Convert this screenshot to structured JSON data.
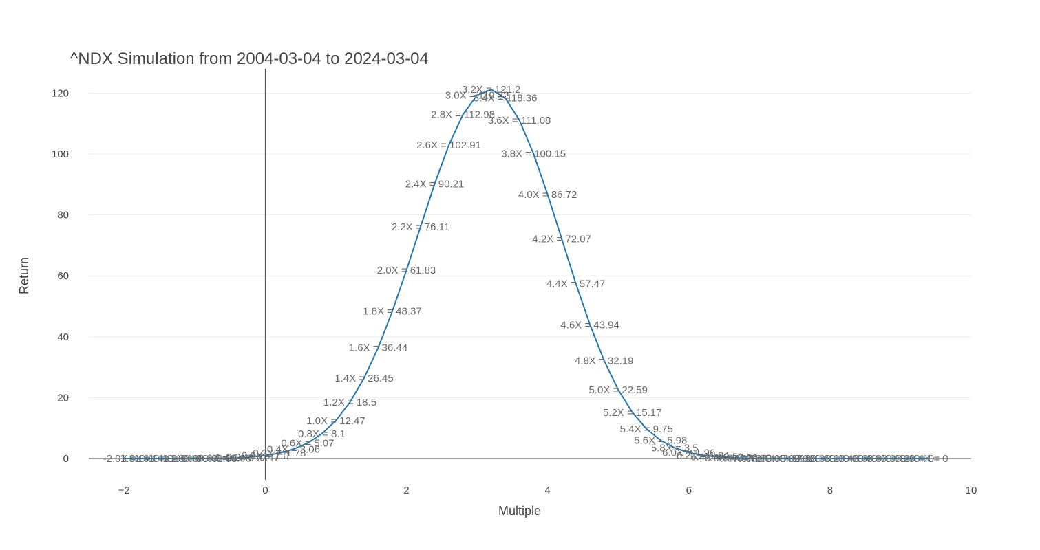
{
  "chart_data": {
    "type": "line",
    "title": "^NDX Simulation from 2004-03-04 to 2024-03-04",
    "xlabel": "Multiple",
    "ylabel": "Return",
    "xlim": [
      -2.5,
      10
    ],
    "ylim": [
      -7,
      128
    ],
    "x_ticks": [
      -2,
      0,
      2,
      4,
      6,
      8,
      10
    ],
    "y_ticks": [
      0,
      20,
      40,
      60,
      80,
      100,
      120
    ],
    "grid": true,
    "legend": "none",
    "line_color": "#1f77b4",
    "points": [
      {
        "x": -2.0,
        "y": 0,
        "label": "-2.0X = 0"
      },
      {
        "x": -1.8,
        "y": 0,
        "label": "-1.8X = 0"
      },
      {
        "x": -1.6,
        "y": 0,
        "label": "-1.6X = 0"
      },
      {
        "x": -1.4,
        "y": 0,
        "label": "-1.4X = 0"
      },
      {
        "x": -1.2,
        "y": 0,
        "label": "-1.2X = 0"
      },
      {
        "x": -1.0,
        "y": 0.01,
        "label": "-1.0X = 0.01"
      },
      {
        "x": -0.8,
        "y": 0.03,
        "label": "-0.8X = 0.03"
      },
      {
        "x": -0.6,
        "y": 0.08,
        "label": "-0.6X = 0.08"
      },
      {
        "x": -0.4,
        "y": 0.2,
        "label": "-0.4X = 0.2"
      },
      {
        "x": -0.2,
        "y": 0.47,
        "label": "-0.2X = 0.47"
      },
      {
        "x": 0.0,
        "y": 1.0,
        "label": "0.0X = 1.0"
      },
      {
        "x": 0.2,
        "y": 1.78,
        "label": "0.2X = 1.78"
      },
      {
        "x": 0.4,
        "y": 3.06,
        "label": "0.4X = 3.06"
      },
      {
        "x": 0.6,
        "y": 5.07,
        "label": "0.6X = 5.07"
      },
      {
        "x": 0.8,
        "y": 8.1,
        "label": "0.8X = 8.1"
      },
      {
        "x": 1.0,
        "y": 12.47,
        "label": "1.0X = 12.47"
      },
      {
        "x": 1.2,
        "y": 18.5,
        "label": "1.2X = 18.5"
      },
      {
        "x": 1.4,
        "y": 26.45,
        "label": "1.4X = 26.45"
      },
      {
        "x": 1.6,
        "y": 36.44,
        "label": "1.6X = 36.44"
      },
      {
        "x": 1.8,
        "y": 48.37,
        "label": "1.8X = 48.37"
      },
      {
        "x": 2.0,
        "y": 61.83,
        "label": "2.0X = 61.83"
      },
      {
        "x": 2.2,
        "y": 76.11,
        "label": "2.2X = 76.11"
      },
      {
        "x": 2.4,
        "y": 90.21,
        "label": "2.4X = 90.21"
      },
      {
        "x": 2.6,
        "y": 102.91,
        "label": "2.6X = 102.91"
      },
      {
        "x": 2.8,
        "y": 112.98,
        "label": "2.8X = 112.98"
      },
      {
        "x": 3.0,
        "y": 119.32,
        "label": "3.0X = 119.32"
      },
      {
        "x": 3.2,
        "y": 121.2,
        "label": "3.2X = 121.2"
      },
      {
        "x": 3.4,
        "y": 118.36,
        "label": "3.4X = 118.36"
      },
      {
        "x": 3.6,
        "y": 111.08,
        "label": "3.6X = 111.08"
      },
      {
        "x": 3.8,
        "y": 100.15,
        "label": "3.8X = 100.15"
      },
      {
        "x": 4.0,
        "y": 86.72,
        "label": "4.0X = 86.72"
      },
      {
        "x": 4.2,
        "y": 72.07,
        "label": "4.2X = 72.07"
      },
      {
        "x": 4.4,
        "y": 57.47,
        "label": "4.4X = 57.47"
      },
      {
        "x": 4.6,
        "y": 43.94,
        "label": "4.6X = 43.94"
      },
      {
        "x": 4.8,
        "y": 32.19,
        "label": "4.8X = 32.19"
      },
      {
        "x": 5.0,
        "y": 22.59,
        "label": "5.0X = 22.59"
      },
      {
        "x": 5.2,
        "y": 15.17,
        "label": "5.2X = 15.17"
      },
      {
        "x": 5.4,
        "y": 9.75,
        "label": "5.4X = 9.75"
      },
      {
        "x": 5.6,
        "y": 5.98,
        "label": "5.6X = 5.98"
      },
      {
        "x": 5.8,
        "y": 3.5,
        "label": "5.8X = 3.5"
      },
      {
        "x": 6.0,
        "y": 1.96,
        "label": "6.0X = 1.96"
      },
      {
        "x": 6.2,
        "y": 1.04,
        "label": "6.2X = 1.04"
      },
      {
        "x": 6.4,
        "y": 0.53,
        "label": "6.4X = 0.53"
      },
      {
        "x": 6.6,
        "y": 0.26,
        "label": "6.6X = 0.26"
      },
      {
        "x": 6.8,
        "y": 0.12,
        "label": "6.8X = 0.12"
      },
      {
        "x": 7.0,
        "y": 0.05,
        "label": "7.0X = 0.05"
      },
      {
        "x": 7.2,
        "y": 0.02,
        "label": "7.2X = 0.02"
      },
      {
        "x": 7.4,
        "y": 0.01,
        "label": "7.4X = 0.01"
      },
      {
        "x": 7.6,
        "y": 0,
        "label": "7.6X = 0"
      },
      {
        "x": 7.8,
        "y": 0,
        "label": "7.8X = 0"
      },
      {
        "x": 8.0,
        "y": 0,
        "label": "8.0X = 0"
      },
      {
        "x": 8.2,
        "y": 0,
        "label": "8.2X = 0"
      },
      {
        "x": 8.4,
        "y": 0,
        "label": "8.4X = 0"
      },
      {
        "x": 8.6,
        "y": 0,
        "label": "8.6X = 0"
      },
      {
        "x": 8.8,
        "y": 0,
        "label": "8.8X = 0"
      },
      {
        "x": 9.0,
        "y": 0,
        "label": "9.0X = 0"
      },
      {
        "x": 9.2,
        "y": 0,
        "label": "9.2X = 0"
      },
      {
        "x": 9.4,
        "y": 0,
        "label": "9.4X = 0"
      }
    ]
  }
}
